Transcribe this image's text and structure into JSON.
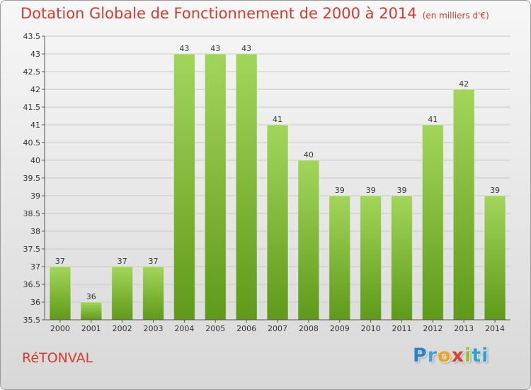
{
  "header": {
    "title": "Dotation Globale de Fonctionnement de 2000 à 2014",
    "unit": "(en milliers d'€)"
  },
  "footer": {
    "town": "RéTONVAL",
    "logo": [
      "P",
      "r",
      "o",
      "x",
      "i",
      "ti"
    ]
  },
  "colors": {
    "title": "#d63c2e",
    "bar_light": "#a2d65a",
    "bar_dark": "#5f9a1a",
    "grid": "#c9c9c9"
  },
  "chart_data": {
    "type": "bar",
    "title": "Dotation Globale de Fonctionnement de 2000 à 2014",
    "subtitle": "(en milliers d'€)",
    "xlabel": "",
    "ylabel": "",
    "categories": [
      "2000",
      "2001",
      "2002",
      "2003",
      "2004",
      "2005",
      "2006",
      "2007",
      "2008",
      "2009",
      "2010",
      "2011",
      "2012",
      "2013",
      "2014"
    ],
    "values": [
      37,
      36,
      37,
      37,
      43,
      43,
      43,
      41,
      40,
      39,
      39,
      39,
      41,
      42,
      39
    ],
    "ylim": [
      35.5,
      43.5
    ],
    "yticks": [
      "35.5",
      "36",
      "36.5",
      "37",
      "37.5",
      "38",
      "38.5",
      "39",
      "39.5",
      "40",
      "40.5",
      "41",
      "41.5",
      "42",
      "42.5",
      "43",
      "43.5"
    ],
    "grid": true,
    "legend": "none"
  }
}
